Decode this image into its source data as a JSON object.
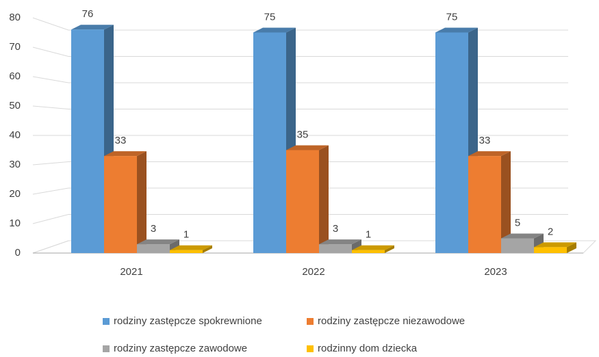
{
  "chart_data": {
    "type": "bar3d",
    "categories": [
      "2021",
      "2022",
      "2023"
    ],
    "series": [
      {
        "name": "rodziny zastępcze spokrewnione",
        "color": "#5b9bd5",
        "values": [
          76,
          75,
          75
        ]
      },
      {
        "name": "rodziny zastępcze niezawodowe",
        "color": "#ed7d31",
        "values": [
          33,
          35,
          33
        ]
      },
      {
        "name": "rodziny zastępcze zawodowe",
        "color": "#a5a5a5",
        "values": [
          3,
          3,
          5
        ]
      },
      {
        "name": "rodzinny dom dziecka",
        "color": "#ffc000",
        "values": [
          1,
          1,
          2
        ]
      }
    ],
    "ylim": [
      0,
      80
    ],
    "yticks": [
      0,
      10,
      20,
      30,
      40,
      50,
      60,
      70,
      80
    ],
    "grid": true,
    "legend": "bottom"
  }
}
